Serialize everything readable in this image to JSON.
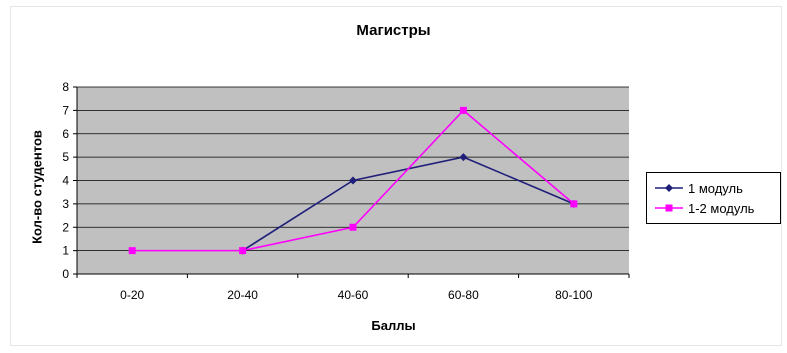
{
  "chart_data": {
    "type": "line",
    "title": "Магистры",
    "xlabel": "Баллы",
    "ylabel": "Кол-во студентов",
    "categories": [
      "0-20",
      "20-40",
      "40-60",
      "60-80",
      "80-100"
    ],
    "ylim": [
      0,
      8
    ],
    "yticks": [
      0,
      1,
      2,
      3,
      4,
      5,
      6,
      7,
      8
    ],
    "grid": true,
    "plot_background": "#c0c0c0",
    "legend_position": "right",
    "series": [
      {
        "name": "1 модуль",
        "color": "#1f1f7a",
        "marker": "diamond",
        "values": [
          null,
          1,
          4,
          5,
          3
        ]
      },
      {
        "name": "1-2 модуль",
        "color": "#ff00ff",
        "marker": "square",
        "values": [
          1,
          1,
          2,
          7,
          3
        ]
      }
    ]
  }
}
